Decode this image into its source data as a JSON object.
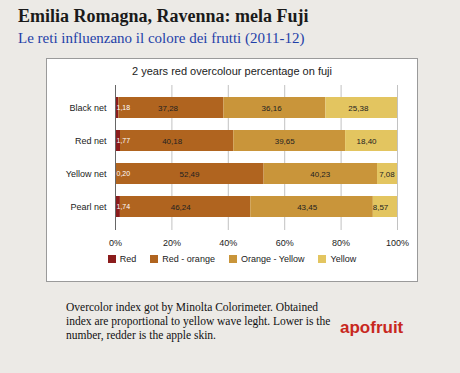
{
  "slide": {
    "title": "Emilia Romagna, Ravenna: mela Fuji",
    "subtitle": "Le reti influenzano il colore dei frutti (2011-12)",
    "caption": "Overcolor index got by Minolta Colorimeter. Obtained index are proportional to yellow wave leght. Lower is the number, redder is the apple skin.",
    "logo": "apofruit"
  },
  "chart_data": {
    "type": "bar",
    "title": "2 years red overcolour percentage on fuji",
    "orientation": "horizontal",
    "stacked": true,
    "data_labels": true,
    "grid": true,
    "legend": "bottom",
    "categories": [
      "Black net",
      "Red net",
      "Yellow net",
      "Pearl net"
    ],
    "series": [
      {
        "name": "Red",
        "color": "#8b1c1c",
        "values": [
          1.18,
          1.77,
          0.2,
          1.74
        ],
        "value_labels": [
          "1,18",
          "1,77",
          "0,20",
          "1,74"
        ]
      },
      {
        "name": "Red - orange",
        "color": "#b0641f",
        "values": [
          37.28,
          40.18,
          52.49,
          46.24
        ],
        "value_labels": [
          "37,28",
          "40,18",
          "52,49",
          "46,24"
        ]
      },
      {
        "name": "Orange - Yellow",
        "color": "#c9953a",
        "values": [
          36.16,
          39.65,
          40.23,
          43.45
        ],
        "value_labels": [
          "36,16",
          "39,65",
          "40,23",
          "43,45"
        ]
      },
      {
        "name": "Yellow",
        "color": "#e3c560",
        "values": [
          25.38,
          18.4,
          7.08,
          8.57
        ],
        "value_labels": [
          "25,38",
          "18,40",
          "7,08",
          "8,57"
        ]
      }
    ],
    "xlim": [
      0,
      100
    ],
    "xticks": [
      {
        "value": 0,
        "label": "0%"
      },
      {
        "value": 20,
        "label": "20%"
      },
      {
        "value": 40,
        "label": "40%"
      },
      {
        "value": 60,
        "label": "60%"
      },
      {
        "value": 80,
        "label": "80%"
      },
      {
        "value": 100,
        "label": "100%"
      }
    ]
  }
}
